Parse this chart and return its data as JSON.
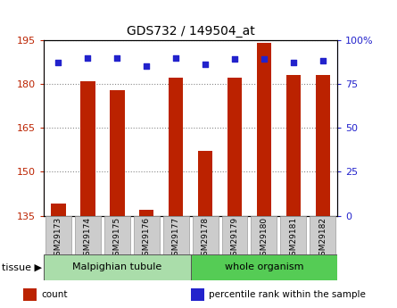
{
  "title": "GDS732 / 149504_at",
  "samples": [
    "GSM29173",
    "GSM29174",
    "GSM29175",
    "GSM29176",
    "GSM29177",
    "GSM29178",
    "GSM29179",
    "GSM29180",
    "GSM29181",
    "GSM29182"
  ],
  "counts": [
    139,
    181,
    178,
    137,
    182,
    157,
    182,
    194,
    183,
    183
  ],
  "percentiles": [
    87,
    90,
    90,
    85,
    90,
    86,
    89,
    89,
    87,
    88
  ],
  "ylim_left": [
    135,
    195
  ],
  "ylim_right": [
    0,
    100
  ],
  "yticks_left": [
    135,
    150,
    165,
    180,
    195
  ],
  "yticks_right": [
    0,
    25,
    50,
    75,
    100
  ],
  "yticklabels_right": [
    "0",
    "25",
    "50",
    "75",
    "100%"
  ],
  "bar_color": "#bb2200",
  "dot_color": "#2222cc",
  "bar_bottom": 135,
  "tissue_groups": [
    {
      "label": "Malpighian tubule",
      "start": 0,
      "end": 5,
      "color": "#aaddaa"
    },
    {
      "label": "whole organism",
      "start": 5,
      "end": 10,
      "color": "#55cc55"
    }
  ],
  "tissue_label": "tissue",
  "legend_items": [
    {
      "color": "#bb2200",
      "label": "count"
    },
    {
      "color": "#2222cc",
      "label": "percentile rank within the sample"
    }
  ],
  "grid_color": "#888888",
  "bg_plot": "#ffffff",
  "left_tick_color": "#bb2200",
  "right_tick_color": "#2222cc"
}
